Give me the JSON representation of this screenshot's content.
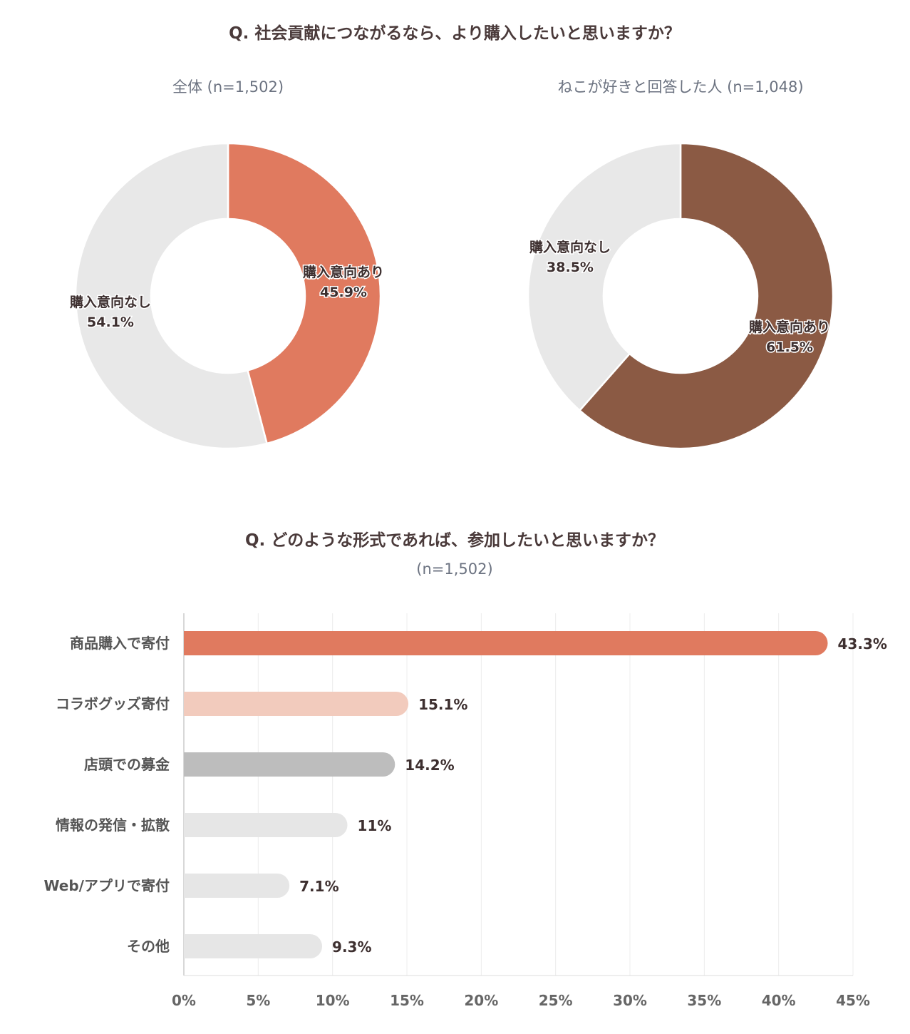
{
  "chart_data": [
    {
      "type": "pie",
      "title": "Q. 社会貢献につながるなら、より購入したいと思いますか？",
      "subtitle": "全体 (n=1,502)",
      "slices": [
        {
          "label": "購入意向あり",
          "value": 45.9,
          "value_label": "45.9%",
          "color": "#e07a5f"
        },
        {
          "label": "購入意向なし",
          "value": 54.1,
          "value_label": "54.1%",
          "color": "#e8e8e8"
        }
      ]
    },
    {
      "type": "pie",
      "subtitle": "ねこが好きと回答した人 (n=1,048)",
      "slices": [
        {
          "label": "購入意向あり",
          "value": 61.5,
          "value_label": "61.5%",
          "color": "#8b5a44"
        },
        {
          "label": "購入意向なし",
          "value": 38.5,
          "value_label": "38.5%",
          "color": "#e8e8e8"
        }
      ]
    },
    {
      "type": "bar",
      "orientation": "horizontal",
      "title": "Q. どのような形式であれば、参加したいと思いますか？",
      "subtitle": "(n=1,502)",
      "categories": [
        "商品購入で寄付",
        "コラボグッズ寄付",
        "店頭での募金",
        "情報の発信・拡散",
        "Web/アプリで寄付",
        "その他"
      ],
      "values": [
        43.3,
        15.1,
        14.2,
        11,
        7.1,
        9.3
      ],
      "value_labels": [
        "43.3%",
        "15.1%",
        "14.2%",
        "11%",
        "7.1%",
        "9.3%"
      ],
      "colors": [
        "#e07a5f",
        "#f2cbbd",
        "#bdbdbd",
        "#e6e6e6",
        "#e6e6e6",
        "#e6e6e6"
      ],
      "xlim": [
        0,
        45
      ],
      "xticks": [
        0,
        5,
        10,
        15,
        20,
        25,
        30,
        35,
        40,
        45
      ],
      "xtick_labels": [
        "0%",
        "5%",
        "10%",
        "15%",
        "20%",
        "25%",
        "30%",
        "35%",
        "40%",
        "45%"
      ],
      "grid": true
    }
  ]
}
